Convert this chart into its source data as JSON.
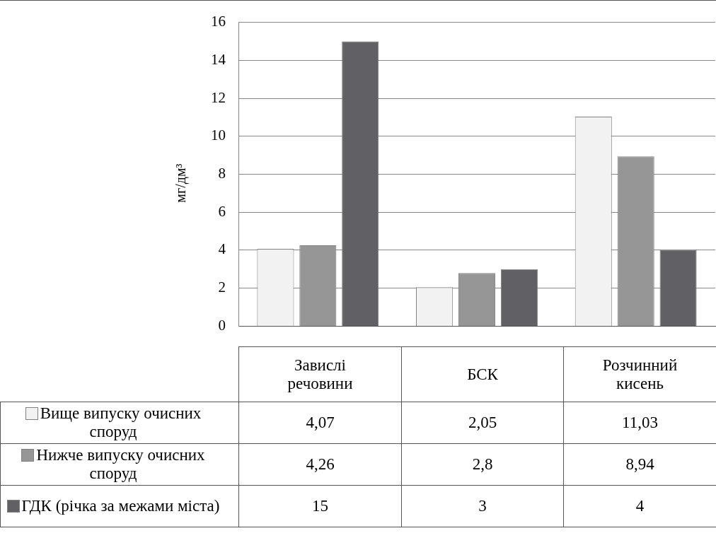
{
  "chart_data": {
    "type": "bar",
    "ylabel": "мг/дм³",
    "categories": [
      "Завислі речовини",
      "БСК",
      "Розчинний кисень"
    ],
    "series": [
      {
        "name": "Вище випуску очисних споруд",
        "color": "#f2f2f2",
        "values": [
          4.07,
          2.05,
          11.03
        ],
        "value_labels": [
          "4,07",
          "2,05",
          "11,03"
        ]
      },
      {
        "name": "Нижче випуску очисних споруд",
        "color": "#969696",
        "values": [
          4.26,
          2.8,
          8.94
        ],
        "value_labels": [
          "4,26",
          "2,8",
          "8,94"
        ]
      },
      {
        "name": "ГДК (річка за межами міста)",
        "color": "#616165",
        "values": [
          15,
          3,
          4
        ],
        "value_labels": [
          "15",
          "3",
          "4"
        ]
      }
    ],
    "ylim": [
      0,
      16
    ],
    "yticks": [
      0,
      2,
      4,
      6,
      8,
      10,
      12,
      14,
      16
    ],
    "grid": "y",
    "legend": "bottom"
  }
}
